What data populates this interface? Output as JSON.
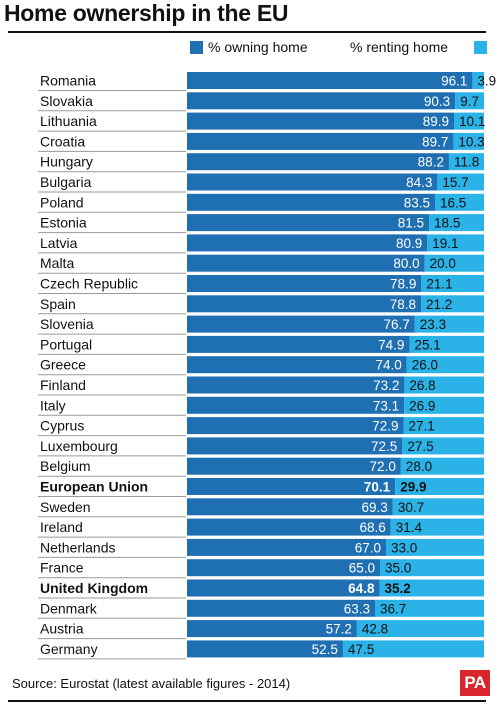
{
  "title": "Home ownership in the EU",
  "legend": {
    "owning": "% owning home",
    "renting": "% renting home"
  },
  "source": "Source: Eurostat (latest available figures - 2014)",
  "logo": "PA",
  "colors": {
    "owning": "#1f6fb3",
    "renting": "#2bb3e8"
  },
  "chart_data": {
    "type": "bar",
    "orientation": "horizontal",
    "stacked": true,
    "title": "Home ownership in the EU",
    "categories": [
      "Romania",
      "Slovakia",
      "Lithuania",
      "Croatia",
      "Hungary",
      "Bulgaria",
      "Poland",
      "Estonia",
      "Latvia",
      "Malta",
      "Czech Republic",
      "Spain",
      "Slovenia",
      "Portugal",
      "Greece",
      "Finland",
      "Italy",
      "Cyprus",
      "Luxembourg",
      "Belgium",
      "European Union",
      "Sweden",
      "Ireland",
      "Netherlands",
      "France",
      "United Kingdom",
      "Denmark",
      "Austria",
      "Germany"
    ],
    "highlighted": [
      "European Union",
      "United Kingdom"
    ],
    "series": [
      {
        "name": "% owning home",
        "values": [
          "96.1",
          "90.3",
          "89.9",
          "89.7",
          "88.2",
          "84.3",
          "83.5",
          "81.5",
          "80.9",
          "80.0",
          "78.9",
          "78.8",
          "76.7",
          "74.9",
          "74.0",
          "73.2",
          "73.1",
          "72.9",
          "72.5",
          "72.0",
          "70.1",
          "69.3",
          "68.6",
          "67.0",
          "65.0",
          "64.8",
          "63.3",
          "57.2",
          "52.5"
        ]
      },
      {
        "name": "% renting home",
        "values": [
          "3.9",
          "9.7",
          "10.1",
          "10.3",
          "11.8",
          "15.7",
          "16.5",
          "18.5",
          "19.1",
          "20.0",
          "21.1",
          "21.2",
          "23.3",
          "25.1",
          "26.0",
          "26.8",
          "26.9",
          "27.1",
          "27.5",
          "28.0",
          "29.9",
          "30.7",
          "31.4",
          "33.0",
          "35.0",
          "35.2",
          "36.7",
          "42.8",
          "47.5"
        ]
      }
    ],
    "xlim": [
      0,
      100
    ],
    "legend_position": "top"
  }
}
